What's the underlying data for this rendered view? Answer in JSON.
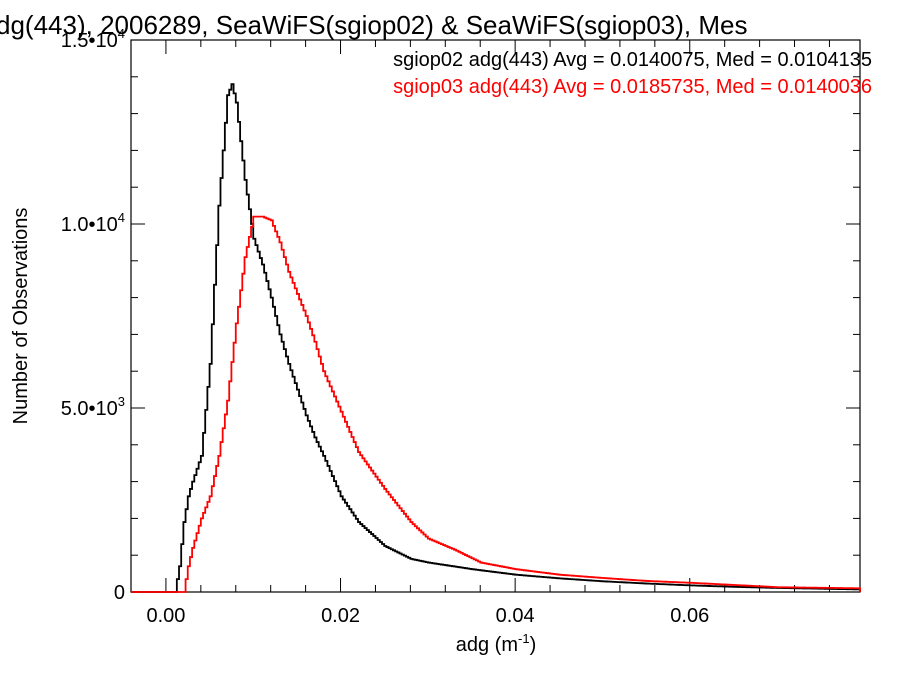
{
  "chart_data": {
    "type": "line",
    "title": "dg(443), 2006289, SeaWiFS(sgiop02) & SeaWiFS(sgiop03), Mes",
    "xlabel": {
      "base": "adg (m",
      "sup": "-1",
      "end": ")"
    },
    "ylabel": "Number of Observations",
    "xlim": [
      -0.004,
      0.0795
    ],
    "ylim": [
      0,
      15000
    ],
    "x_ticks": [
      {
        "value": 0.0,
        "label": "0.00"
      },
      {
        "value": 0.02,
        "label": "0.02"
      },
      {
        "value": 0.04,
        "label": "0.04"
      },
      {
        "value": 0.06,
        "label": "0.06"
      }
    ],
    "y_ticks": [
      {
        "value": 0,
        "base": "0",
        "sup": ""
      },
      {
        "value": 5000,
        "base": "5.0•10",
        "sup": "3"
      },
      {
        "value": 10000,
        "base": "1.0•10",
        "sup": "4"
      },
      {
        "value": 15000,
        "base": "1.5•10",
        "sup": "4"
      }
    ],
    "grid": false,
    "legend_position": "top-right",
    "series": [
      {
        "name": "sgiop02 adg(443) Avg = 0.0140075, Med = 0.0104135",
        "color": "#000000",
        "x": [
          -0.004,
          0.001,
          0.0015,
          0.002,
          0.0025,
          0.003,
          0.004,
          0.005,
          0.006,
          0.007,
          0.0075,
          0.008,
          0.009,
          0.01,
          0.011,
          0.012,
          0.013,
          0.014,
          0.015,
          0.016,
          0.017,
          0.018,
          0.02,
          0.022,
          0.025,
          0.028,
          0.03,
          0.035,
          0.04,
          0.045,
          0.05,
          0.055,
          0.06,
          0.065,
          0.07,
          0.0795
        ],
        "y": [
          0,
          0,
          700,
          1900,
          2600,
          3000,
          3700,
          6200,
          10500,
          13500,
          13800,
          13300,
          11200,
          9600,
          8900,
          8000,
          7000,
          6200,
          5500,
          4800,
          4200,
          3700,
          2600,
          1900,
          1250,
          900,
          800,
          620,
          470,
          370,
          290,
          230,
          180,
          140,
          110,
          70
        ]
      },
      {
        "name": "sgiop03 adg(443) Avg = 0.0185735, Med = 0.0140036",
        "color": "#ff0000",
        "x": [
          -0.004,
          0.002,
          0.0025,
          0.003,
          0.004,
          0.005,
          0.006,
          0.007,
          0.008,
          0.009,
          0.01,
          0.011,
          0.012,
          0.013,
          0.014,
          0.015,
          0.016,
          0.017,
          0.018,
          0.02,
          0.022,
          0.025,
          0.028,
          0.03,
          0.033,
          0.036,
          0.04,
          0.045,
          0.05,
          0.055,
          0.06,
          0.065,
          0.07,
          0.0795
        ],
        "y": [
          0,
          0,
          700,
          1200,
          2000,
          2600,
          3700,
          5200,
          7300,
          9100,
          10200,
          10200,
          10100,
          9500,
          8700,
          8100,
          7500,
          6800,
          6000,
          4900,
          3800,
          2800,
          1900,
          1450,
          1150,
          800,
          620,
          470,
          380,
          300,
          250,
          190,
          130,
          100
        ]
      }
    ]
  }
}
